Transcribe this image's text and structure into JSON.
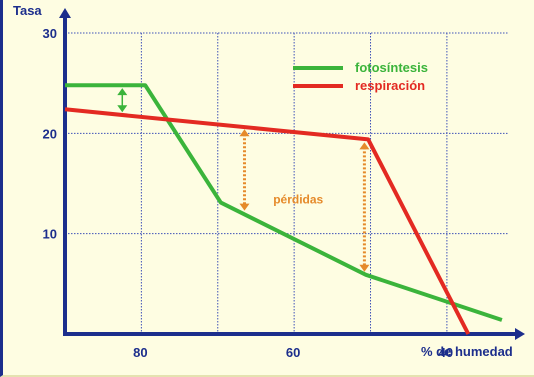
{
  "chart_data": {
    "type": "line",
    "ylabel": "Tasa",
    "xlabel": "% de humedad",
    "x_reversed": true,
    "xlim": [
      90,
      32
    ],
    "ylim": [
      0,
      30
    ],
    "x_ticks": [
      "80",
      "60",
      "40"
    ],
    "y_ticks": [
      "10",
      "20",
      "30"
    ],
    "grid": true,
    "legend_position": "top-right",
    "series": [
      {
        "name": "fotosíntesis",
        "color": "#3bb43b",
        "points": [
          [
            90,
            24.8
          ],
          [
            79.5,
            24.8
          ],
          [
            69.6,
            13.1
          ],
          [
            50.6,
            5.9
          ],
          [
            32.8,
            1.4
          ]
        ]
      },
      {
        "name": "respiración",
        "color": "#e32a22",
        "points": [
          [
            90,
            22.4
          ],
          [
            50.3,
            19.4
          ],
          [
            37.2,
            0
          ]
        ]
      }
    ],
    "annotations": [
      {
        "text": "pérdidas",
        "color": "#e58a2a",
        "x": 63,
        "y": 13.5
      }
    ],
    "difference_markers": [
      {
        "x": 82.5,
        "y_from": 24.8,
        "y_to": 21.8,
        "color": "#3bb43b"
      },
      {
        "x": 66.5,
        "y_from": 20.7,
        "y_to": 12.0,
        "color": "#e58a2a"
      },
      {
        "x": 50.8,
        "y_from": 19.4,
        "y_to": 5.9,
        "color": "#e58a2a"
      }
    ]
  }
}
